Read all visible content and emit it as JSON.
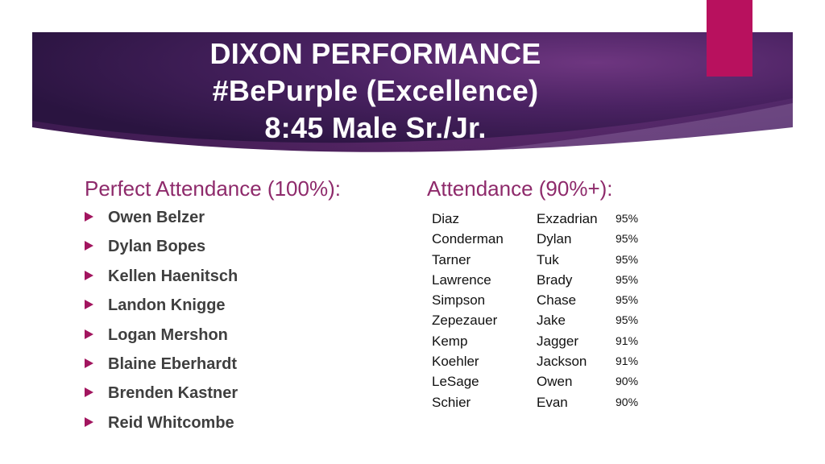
{
  "title": {
    "line1": "DIXON PERFORMANCE",
    "line2": "#BePurple (Excellence)",
    "line3": "8:45 Male Sr./Jr."
  },
  "colors": {
    "banner_dark": "#2e1646",
    "banner_mid": "#5a2a6e",
    "banner_light": "#7a3c88",
    "accent": "#b8115e",
    "heading": "#8e2a6b",
    "bullet": "#a2155f"
  },
  "perfect_attendance": {
    "heading": "Perfect Attendance (100%):",
    "names": [
      "Owen Belzer",
      "Dylan Bopes",
      "Kellen Haenitsch",
      "Landon Knigge",
      "Logan Mershon",
      "Blaine Eberhardt",
      "Brenden Kastner",
      "Reid Whitcombe"
    ]
  },
  "attendance_90": {
    "heading": "Attendance (90%+):",
    "rows": [
      {
        "last": "Diaz",
        "first": "Exzadrian",
        "pct": "95%"
      },
      {
        "last": "Conderman",
        "first": "Dylan",
        "pct": "95%"
      },
      {
        "last": "Tarner",
        "first": "Tuk",
        "pct": "95%"
      },
      {
        "last": "Lawrence",
        "first": "Brady",
        "pct": "95%"
      },
      {
        "last": "Simpson",
        "first": "Chase",
        "pct": "95%"
      },
      {
        "last": "Zepezauer",
        "first": "Jake",
        "pct": "95%"
      },
      {
        "last": "Kemp",
        "first": "Jagger",
        "pct": "91%"
      },
      {
        "last": "Koehler",
        "first": "Jackson",
        "pct": "91%"
      },
      {
        "last": "LeSage",
        "first": "Owen",
        "pct": "90%"
      },
      {
        "last": "Schier",
        "first": "Evan",
        "pct": "90%"
      }
    ]
  }
}
